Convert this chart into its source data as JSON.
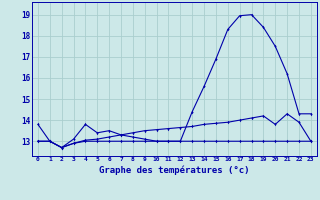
{
  "title": "Graphe des températures (°c)",
  "bg_color": "#cce8e8",
  "grid_color": "#aacece",
  "line_color": "#0000aa",
  "x_ticks": [
    0,
    1,
    2,
    3,
    4,
    5,
    6,
    7,
    8,
    9,
    10,
    11,
    12,
    13,
    14,
    15,
    16,
    17,
    18,
    19,
    20,
    21,
    22,
    23
  ],
  "y_ticks": [
    13,
    14,
    15,
    16,
    17,
    18,
    19
  ],
  "ylim": [
    12.3,
    19.6
  ],
  "xlim": [
    -0.5,
    23.5
  ],
  "hours": [
    0,
    1,
    2,
    3,
    4,
    5,
    6,
    7,
    8,
    9,
    10,
    11,
    12,
    13,
    14,
    15,
    16,
    17,
    18,
    19,
    20,
    21,
    22,
    23
  ],
  "temp_main": [
    13.8,
    13.0,
    12.7,
    13.1,
    13.8,
    13.4,
    13.5,
    13.3,
    13.2,
    13.1,
    13.0,
    13.0,
    13.0,
    14.4,
    15.6,
    16.9,
    18.3,
    18.95,
    19.0,
    18.4,
    17.5,
    16.2,
    14.3,
    14.3
  ],
  "temp_min": [
    13.0,
    13.0,
    12.7,
    12.9,
    13.0,
    13.0,
    13.0,
    13.0,
    13.0,
    13.0,
    13.0,
    13.0,
    13.0,
    13.0,
    13.0,
    13.0,
    13.0,
    13.0,
    13.0,
    13.0,
    13.0,
    13.0,
    13.0,
    13.0
  ],
  "temp_max": [
    13.0,
    13.0,
    12.7,
    12.9,
    13.05,
    13.1,
    13.2,
    13.3,
    13.4,
    13.5,
    13.55,
    13.6,
    13.65,
    13.7,
    13.8,
    13.85,
    13.9,
    14.0,
    14.1,
    14.2,
    13.8,
    14.3,
    13.9,
    13.0
  ]
}
